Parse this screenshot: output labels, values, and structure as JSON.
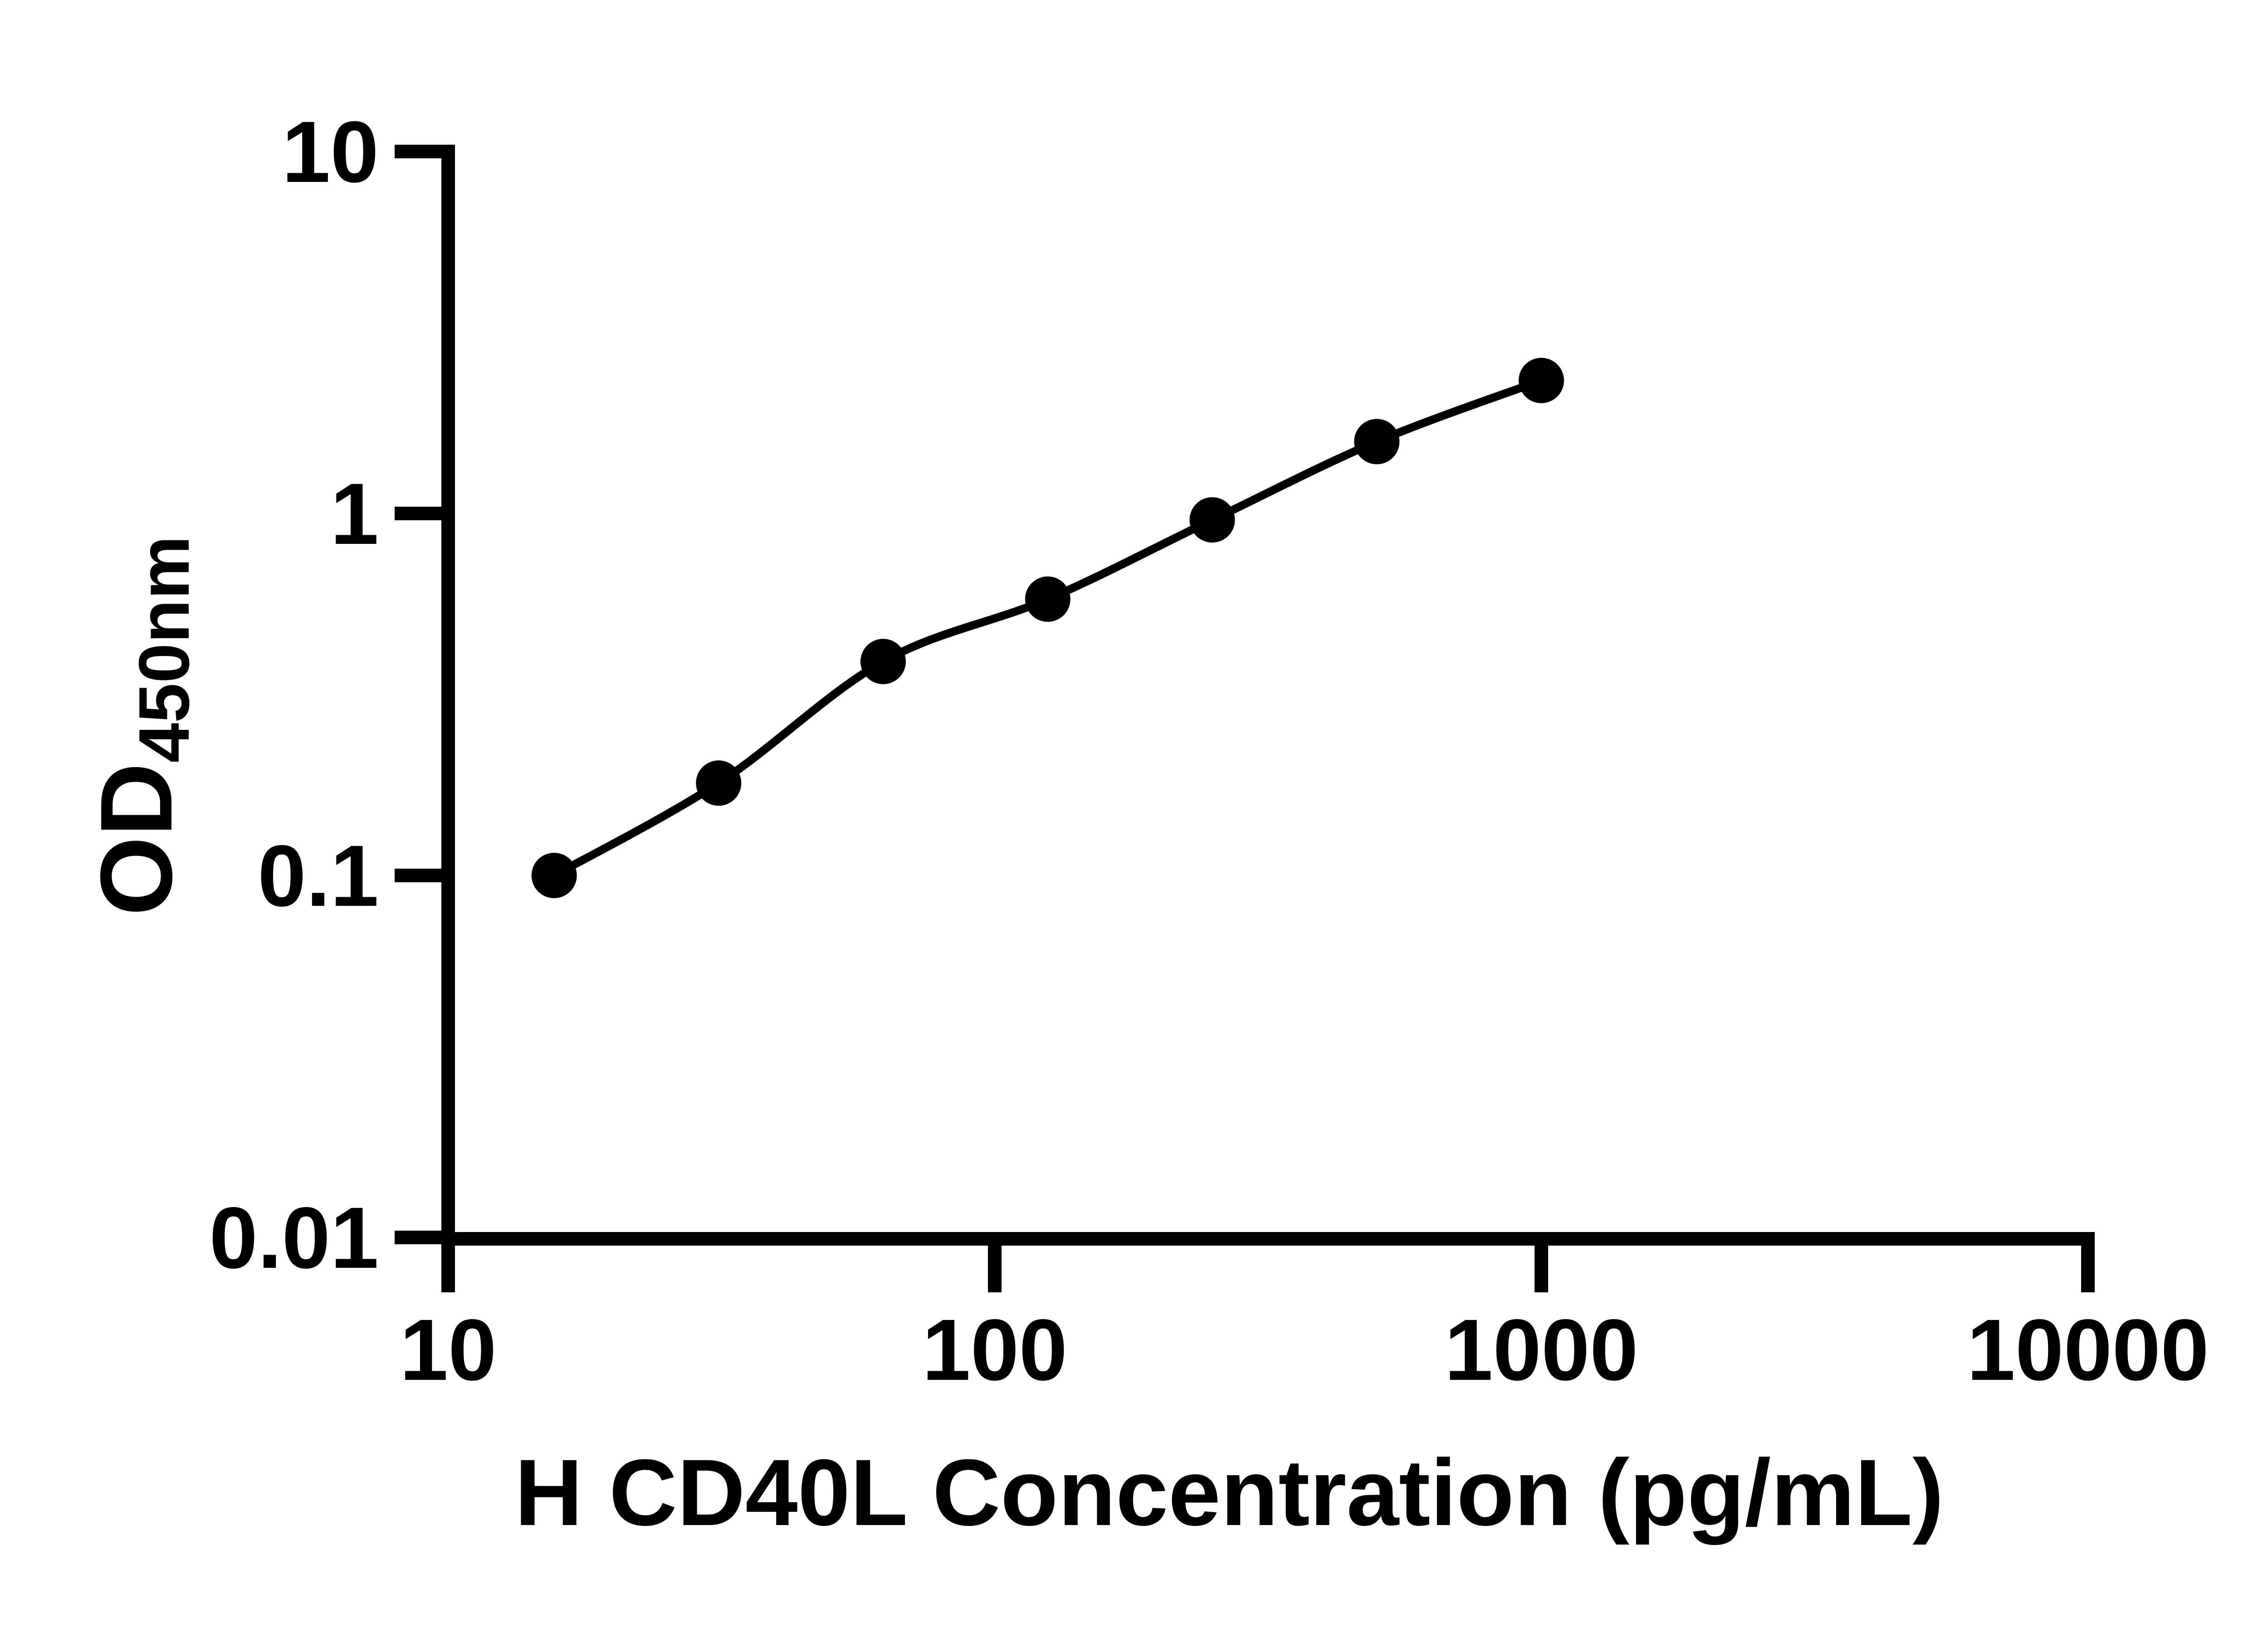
{
  "page": {
    "background_color": "#ffffff",
    "ink_color": "#000000"
  },
  "chart_data": {
    "type": "line",
    "title": "",
    "xlabel": "H CD40L Concentration (pg/mL)",
    "ylabel": "OD450nm",
    "ylabel_main": "OD",
    "ylabel_sub": "450nm",
    "x_scale": "log",
    "y_scale": "log",
    "xlim": [
      10,
      10000
    ],
    "ylim": [
      0.01,
      10
    ],
    "grid": false,
    "legend": "none",
    "x_ticks": [
      {
        "value": 10,
        "label": "10"
      },
      {
        "value": 100,
        "label": "100"
      },
      {
        "value": 1000,
        "label": "1000"
      },
      {
        "value": 10000,
        "label": "10000"
      }
    ],
    "y_ticks": [
      {
        "value": 10,
        "label": "10"
      },
      {
        "value": 1,
        "label": "1"
      },
      {
        "value": 0.1,
        "label": "0.1"
      },
      {
        "value": 0.01,
        "label": "0.01"
      }
    ],
    "series": [
      {
        "marker": "filled-circle",
        "line": "smooth",
        "color": "#000000",
        "points": [
          {
            "x": 15.63,
            "y": 0.1
          },
          {
            "x": 31.25,
            "y": 0.18
          },
          {
            "x": 62.5,
            "y": 0.39
          },
          {
            "x": 125,
            "y": 0.58
          },
          {
            "x": 250,
            "y": 0.96
          },
          {
            "x": 500,
            "y": 1.58
          },
          {
            "x": 1000,
            "y": 2.33
          }
        ]
      }
    ]
  }
}
